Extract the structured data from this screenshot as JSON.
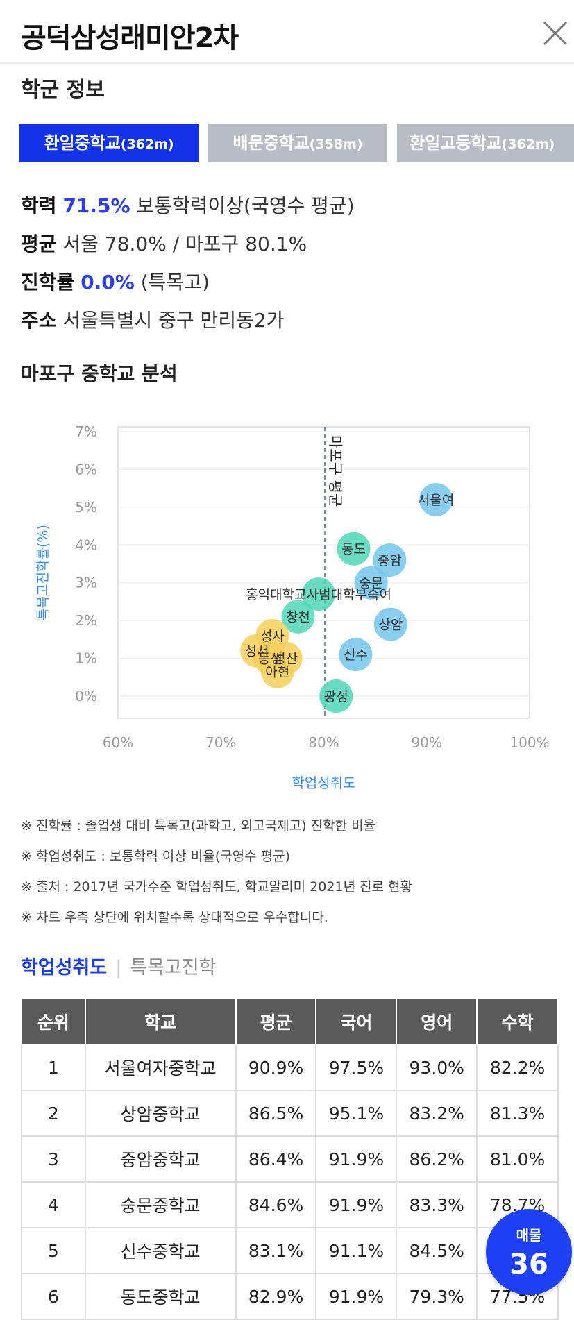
{
  "header": {
    "title": "공덕삼성래미안2차"
  },
  "section_school": {
    "title": "학군 정보"
  },
  "tabs": [
    {
      "name": "환일중학교",
      "dist": "(362m)",
      "active": true
    },
    {
      "name": "배문중학교",
      "dist": "(358m)",
      "active": false
    },
    {
      "name": "환일고등학교",
      "dist": "(362m)",
      "active": false
    }
  ],
  "info": {
    "achievement_label": "학력",
    "achievement_value": "71.5%",
    "achievement_suffix": "보통학력이상(국영수 평균)",
    "average_label": "평균",
    "average_value": "서울 78.0% / 마포구 80.1%",
    "admission_label": "진학률",
    "admission_value": "0.0%",
    "admission_suffix": "(특목고)",
    "address_label": "주소",
    "address_value": "서울특별시 중구 만리동2가"
  },
  "section_analysis": {
    "title": "마포구 중학교 분석"
  },
  "chart_data": {
    "type": "scatter",
    "xlabel": "학업성취도",
    "ylabel": "특목고진학률(%)",
    "xlim": [
      60,
      100
    ],
    "ylim": [
      0,
      7
    ],
    "x_ticks": [
      "60%",
      "70%",
      "80%",
      "90%",
      "100%"
    ],
    "y_ticks": [
      "0%",
      "1%",
      "2%",
      "3%",
      "4%",
      "5%",
      "6%",
      "7%"
    ],
    "reference_line": {
      "x": 80.1,
      "label": "마포구 평균"
    },
    "colors": {
      "blue": "#74c6ec",
      "teal": "#4fd6b6",
      "yellow": "#f6cf5c",
      "axis_label": "#3a8ee6"
    },
    "points": [
      {
        "label": "서울여",
        "x": 90.9,
        "y": 5.2,
        "color": "blue"
      },
      {
        "label": "동도",
        "x": 82.9,
        "y": 3.9,
        "color": "teal"
      },
      {
        "label": "중암",
        "x": 86.4,
        "y": 3.6,
        "color": "blue"
      },
      {
        "label": "숭문",
        "x": 84.6,
        "y": 3.0,
        "color": "blue"
      },
      {
        "label": "홍익대학교사범대학부속여",
        "x": 79.5,
        "y": 2.7,
        "color": "teal"
      },
      {
        "label": "창천",
        "x": 77.5,
        "y": 2.1,
        "color": "teal"
      },
      {
        "label": "상암",
        "x": 86.5,
        "y": 1.9,
        "color": "blue"
      },
      {
        "label": "성사",
        "x": 75.0,
        "y": 1.6,
        "color": "yellow"
      },
      {
        "label": "성서",
        "x": 73.5,
        "y": 1.2,
        "color": "yellow"
      },
      {
        "label": "동성",
        "x": 74.8,
        "y": 1.0,
        "color": "yellow"
      },
      {
        "label": "성산",
        "x": 76.3,
        "y": 1.0,
        "color": "yellow"
      },
      {
        "label": "아현",
        "x": 75.5,
        "y": 0.65,
        "color": "yellow"
      },
      {
        "label": "신수",
        "x": 83.1,
        "y": 1.1,
        "color": "blue"
      },
      {
        "label": "광성",
        "x": 81.2,
        "y": 0.0,
        "color": "teal"
      }
    ]
  },
  "notes": [
    "※ 진학률 : 졸업생 대비 특목고(과학고, 외고국제고) 진학한 비율",
    "※ 학업성취도 : 보통학력 이상 비율(국영수 평균)",
    "※ 출처 : 2017년 국가수준 학업성취도, 학교알리미 2021년 진로 현황",
    "※ 차트 우측 상단에 위치할수록 상대적으로 우수합니다."
  ],
  "subtabs": {
    "active": "학업성취도",
    "separator": "|",
    "inactive": "특목고진학"
  },
  "table": {
    "headers": [
      "순위",
      "학교",
      "평균",
      "국어",
      "영어",
      "수학"
    ],
    "rows": [
      [
        "1",
        "서울여자중학교",
        "90.9%",
        "97.5%",
        "93.0%",
        "82.2%"
      ],
      [
        "2",
        "상암중학교",
        "86.5%",
        "95.1%",
        "83.2%",
        "81.3%"
      ],
      [
        "3",
        "중암중학교",
        "86.4%",
        "91.9%",
        "86.2%",
        "81.0%"
      ],
      [
        "4",
        "숭문중학교",
        "84.6%",
        "91.9%",
        "83.3%",
        "78.7%"
      ],
      [
        "5",
        "신수중학교",
        "83.1%",
        "91.1%",
        "84.5%",
        ""
      ],
      [
        "6",
        "동도중학교",
        "82.9%",
        "91.9%",
        "79.3%",
        "77.5%"
      ]
    ]
  },
  "fab": {
    "label": "매물",
    "count": "36"
  }
}
